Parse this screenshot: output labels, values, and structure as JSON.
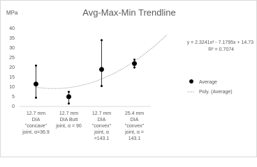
{
  "chart_data": {
    "type": "scatter",
    "title": "Avg-Max-Min Trendline",
    "y_label": "MPa",
    "categories": [
      [
        "12.7 mm",
        "DIA",
        "\"concave\"",
        "joint, α=36.9"
      ],
      [
        "12.7 mm",
        "DIA Butt",
        "joint, α = 90"
      ],
      [
        "12.7 mm",
        "DIA",
        "\"convex\"",
        "joint, α",
        "=143.1"
      ],
      [
        "25.4 mm",
        "DIA",
        "\"convex\"",
        "joint, α =",
        "143.1"
      ]
    ],
    "series": [
      {
        "name": "Average",
        "color": "#000000",
        "values": [
          11.5,
          5,
          19,
          22
        ]
      }
    ],
    "max": [
      21,
      7.5,
      34,
      24
    ],
    "min": [
      4.5,
      1.5,
      10.5,
      20
    ],
    "trendline": {
      "name": "Poly. (Average)",
      "coefficients": [
        2.3241,
        -7.1795,
        14.73
      ],
      "equation": "y = 2.3241x² - 7.1795x + 14.73",
      "r2": "R² = 0.7074",
      "color": "#888888"
    },
    "ylim": [
      0,
      40
    ],
    "yticks": [
      0,
      5,
      10,
      15,
      20,
      25,
      30,
      35,
      40
    ],
    "grid": false,
    "legend": "right"
  }
}
